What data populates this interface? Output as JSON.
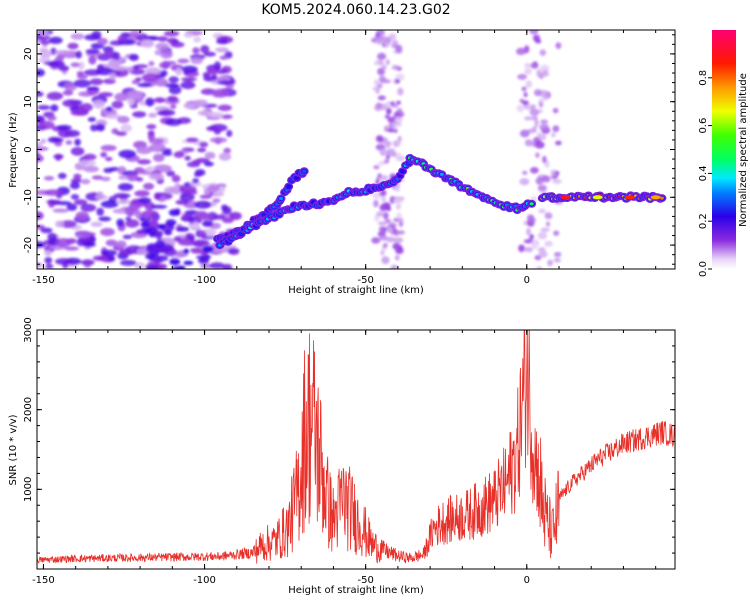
{
  "chart_data": [
    {
      "type": "heatmap",
      "title": "KOM5.2024.060.14.23.G02",
      "xlabel": "Height of straight line (km)",
      "ylabel": "Frequency (Hz)",
      "xlim": [
        -152,
        46
      ],
      "ylim": [
        -25,
        25
      ],
      "xticks": [
        -150,
        -100,
        -50,
        0
      ],
      "yticks": [
        -20,
        -10,
        0,
        10,
        20
      ],
      "colorbar": {
        "label": "Normalized spectral amplitude",
        "range": [
          0,
          1
        ],
        "ticks": [
          0.0,
          0.2,
          0.4,
          0.6,
          0.8
        ],
        "colormap": "rainbow-purple-to-red"
      },
      "ridges": [
        {
          "name": "",
          "points": [
            [
              -96,
              -19
            ],
            [
              -90,
              -17.5
            ],
            [
              -82,
              -14
            ],
            [
              -76,
              -10
            ],
            [
              -72,
              -6
            ],
            [
              -68,
              -4
            ]
          ],
          "peak": 0.3
        },
        {
          "name": "",
          "points": [
            [
              -95,
              -20
            ],
            [
              -85,
              -16
            ],
            [
              -72,
              -12
            ],
            [
              -62,
              -11
            ],
            [
              -55,
              -9
            ],
            [
              -46,
              -8
            ],
            [
              -40,
              -6
            ],
            [
              -36,
              -2
            ]
          ],
          "peak": 0.35
        },
        {
          "name": "",
          "points": [
            [
              -36,
              -1.5
            ],
            [
              -28,
              -5
            ],
            [
              -22,
              -7
            ],
            [
              -15,
              -9.5
            ],
            [
              -8,
              -11.5
            ],
            [
              -2,
              -12.5
            ],
            [
              2,
              -11
            ]
          ],
          "peak": 0.5
        },
        {
          "name": "",
          "points": [
            [
              5,
              -10
            ],
            [
              15,
              -10
            ],
            [
              25,
              -10
            ],
            [
              35,
              -10
            ],
            [
              43,
              -10
            ]
          ],
          "peak": 0.9
        }
      ],
      "noise_region_x": [
        -152,
        -92
      ]
    },
    {
      "type": "line",
      "xlabel": "Height of straight line (km)",
      "ylabel": "SNR (10 * v/v)",
      "xlim": [
        -152,
        46
      ],
      "ylim": [
        0,
        3000
      ],
      "xticks": [
        -150,
        -100,
        -50,
        0
      ],
      "yticks": [
        1000,
        2000,
        3000
      ],
      "color": "#e8302a",
      "series": [
        {
          "name": "",
          "x": [
            -152,
            -140,
            -125,
            -110,
            -95,
            -85,
            -82,
            -78,
            -74,
            -71,
            -69,
            -67,
            -65,
            -62,
            -60,
            -57,
            -54,
            -51,
            -48,
            -44,
            -40,
            -36,
            -32,
            -29,
            -26,
            -22,
            -18,
            -14,
            -10,
            -6,
            -3,
            -1,
            0,
            2,
            4,
            6,
            8,
            10,
            14,
            18,
            22,
            26,
            30,
            34,
            38,
            42,
            46
          ],
          "values": [
            120,
            140,
            150,
            160,
            170,
            220,
            350,
            400,
            600,
            1100,
            1900,
            2200,
            1800,
            1000,
            700,
            1000,
            800,
            600,
            350,
            250,
            180,
            150,
            200,
            550,
            650,
            700,
            750,
            850,
            950,
            1200,
            1600,
            2400,
            2900,
            1700,
            1200,
            700,
            500,
            900,
            1100,
            1250,
            1400,
            1500,
            1600,
            1650,
            1700,
            1750,
            1700
          ]
        }
      ]
    }
  ]
}
